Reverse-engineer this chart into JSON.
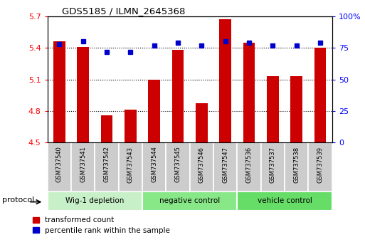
{
  "title": "GDS5185 / ILMN_2645368",
  "samples": [
    "GSM737540",
    "GSM737541",
    "GSM737542",
    "GSM737543",
    "GSM737544",
    "GSM737545",
    "GSM737546",
    "GSM737547",
    "GSM737536",
    "GSM737537",
    "GSM737538",
    "GSM737539"
  ],
  "red_values": [
    5.46,
    5.41,
    4.76,
    4.81,
    5.1,
    5.38,
    4.87,
    5.67,
    5.45,
    5.13,
    5.13,
    5.4
  ],
  "blue_values": [
    78,
    80,
    72,
    72,
    77,
    79,
    77,
    80,
    79,
    77,
    77,
    79
  ],
  "groups": [
    {
      "label": "Wig-1 depletion",
      "start": 0,
      "end": 4,
      "color": "#c8f0c8"
    },
    {
      "label": "negative control",
      "start": 4,
      "end": 8,
      "color": "#88e888"
    },
    {
      "label": "vehicle control",
      "start": 8,
      "end": 12,
      "color": "#66dd66"
    }
  ],
  "ylim_left": [
    4.5,
    5.7
  ],
  "ylim_right": [
    0,
    100
  ],
  "yticks_left": [
    4.5,
    4.8,
    5.1,
    5.4,
    5.7
  ],
  "yticks_right": [
    0,
    25,
    50,
    75,
    100
  ],
  "ytick_labels_right": [
    "0",
    "25",
    "50",
    "75",
    "100%"
  ],
  "bar_color": "#cc0000",
  "dot_color": "#0000cc",
  "bar_bottom": 4.5,
  "legend_red_label": "transformed count",
  "legend_blue_label": "percentile rank within the sample",
  "protocol_label": "protocol"
}
